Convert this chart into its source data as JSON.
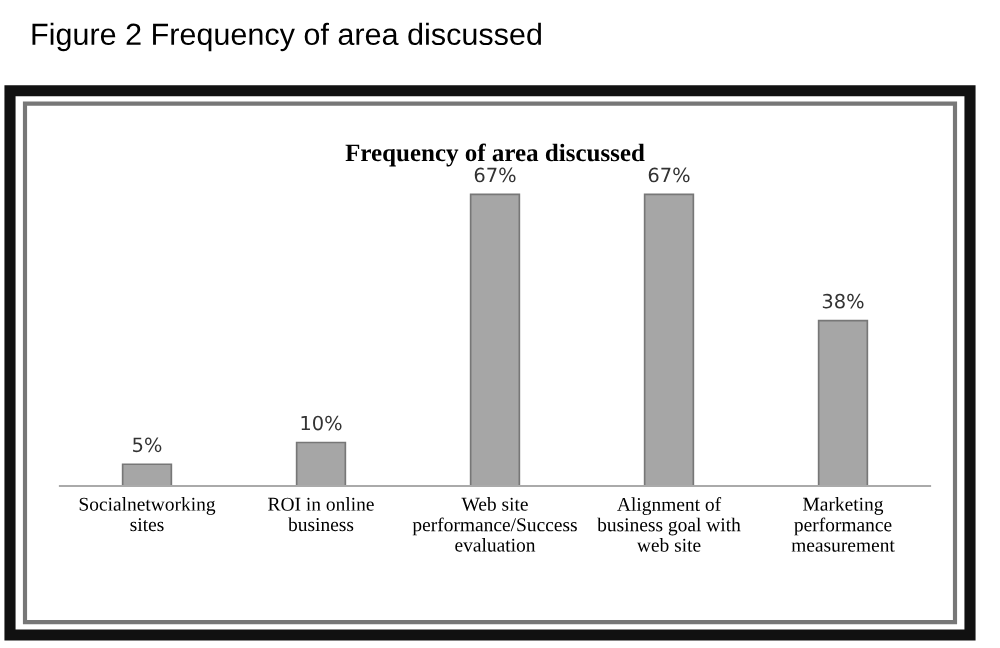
{
  "chart_data": {
    "type": "bar",
    "title": "Frequency of area discussed",
    "annotations": [
      "Figure 2 Frequency of area discussed"
    ],
    "categories": [
      "Socialnetworking sites",
      "ROI in online business",
      "Web site performance/Success evaluation",
      "Alignment of business goal with web site",
      "Marketing performance measurement"
    ],
    "values": [
      5,
      10,
      67,
      67,
      38
    ],
    "value_labels": [
      "5%",
      "10%",
      "67%",
      "67%",
      "38%"
    ],
    "color": "#a6a6a6",
    "grid": false,
    "legend": false
  }
}
